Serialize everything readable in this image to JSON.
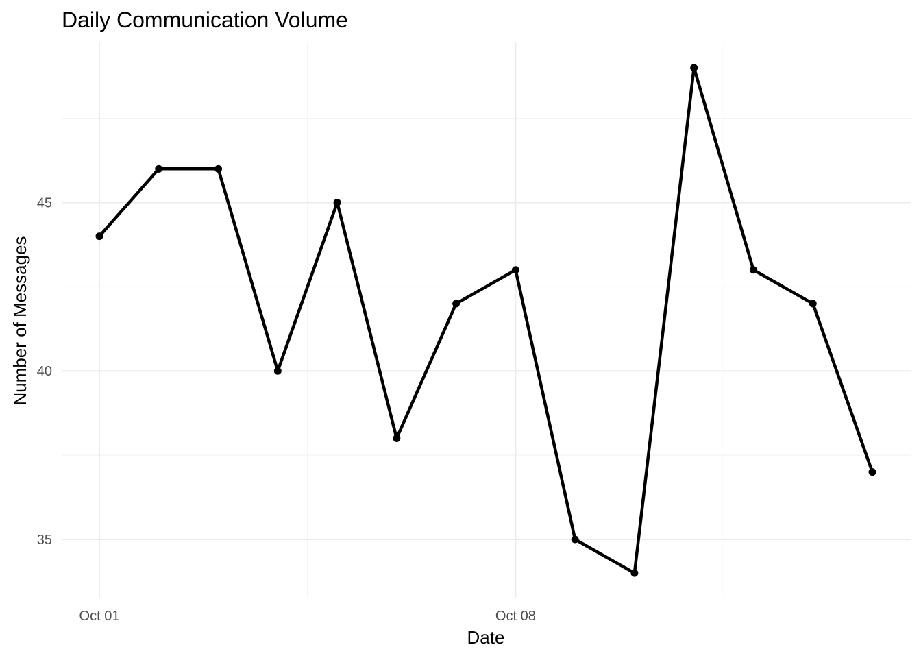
{
  "chart_data": {
    "type": "line",
    "title": "Daily Communication Volume",
    "xlabel": "Date",
    "ylabel": "Number of Messages",
    "x": [
      "2023-10-01",
      "2023-10-02",
      "2023-10-03",
      "2023-10-04",
      "2023-10-05",
      "2023-10-06",
      "2023-10-07",
      "2023-10-08",
      "2023-10-09",
      "2023-10-10",
      "2023-10-11",
      "2023-10-12",
      "2023-10-13",
      "2023-10-14"
    ],
    "series": [
      {
        "values": [
          44,
          46,
          46,
          40,
          45,
          38,
          42,
          43,
          35,
          34,
          49,
          43,
          42,
          37
        ]
      }
    ],
    "x_ticks": [
      {
        "date": "2023-10-01",
        "label": "Oct 01"
      },
      {
        "date": "2023-10-08",
        "label": "Oct 08"
      }
    ],
    "y_ticks": [
      35,
      40,
      45
    ],
    "ylim": [
      33.25,
      49.75
    ],
    "xlim": [
      "2023-10-01",
      "2023-10-14"
    ],
    "grid": true,
    "line_color": "#000000"
  }
}
